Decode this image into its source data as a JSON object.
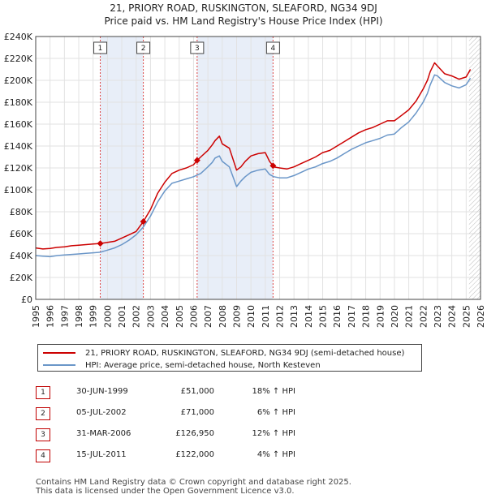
{
  "chart_data": {
    "type": "line",
    "title": "21, PRIORY ROAD, RUSKINGTON, SLEAFORD, NG34 9DJ",
    "subtitle": "Price paid vs. HM Land Registry's House Price Index (HPI)",
    "xlim": [
      1995,
      2026
    ],
    "ylim": [
      0,
      240000
    ],
    "x_ticks": [
      "1995",
      "1996",
      "1997",
      "1998",
      "1999",
      "2000",
      "2001",
      "2002",
      "2003",
      "2004",
      "2005",
      "2006",
      "2007",
      "2008",
      "2009",
      "2010",
      "2011",
      "2012",
      "2013",
      "2014",
      "2015",
      "2016",
      "2017",
      "2018",
      "2019",
      "2020",
      "2021",
      "2022",
      "2023",
      "2024",
      "2025",
      "2026"
    ],
    "y_ticks": [
      0,
      20000,
      40000,
      60000,
      80000,
      100000,
      120000,
      140000,
      160000,
      180000,
      200000,
      220000,
      240000
    ],
    "y_tick_labels": [
      "£0",
      "£20K",
      "£40K",
      "£60K",
      "£80K",
      "£100K",
      "£120K",
      "£140K",
      "£160K",
      "£180K",
      "£200K",
      "£220K",
      "£240K"
    ],
    "grid": true,
    "colors": {
      "price_paid": "#cc0000",
      "hpi": "#6a96c8",
      "sale_band": "#e8eef8",
      "sale_line": "#dd4444",
      "forecast_hatch": "#bbbbbb"
    },
    "forecast_start": 2025.2,
    "series": [
      {
        "name": "21, PRIORY ROAD, RUSKINGTON, SLEAFORD, NG34 9DJ (semi-detached house)",
        "color": "#cc0000",
        "x": [
          1995.0,
          1995.5,
          1996.0,
          1996.5,
          1997.0,
          1997.5,
          1998.0,
          1998.5,
          1999.0,
          1999.5,
          2000.0,
          2000.5,
          2001.0,
          2001.5,
          2002.0,
          2002.5,
          2003.0,
          2003.5,
          2004.0,
          2004.5,
          2005.0,
          2005.5,
          2006.0,
          2006.25,
          2006.5,
          2007.0,
          2007.3,
          2007.5,
          2007.8,
          2008.0,
          2008.5,
          2009.0,
          2009.3,
          2009.6,
          2010.0,
          2010.5,
          2011.0,
          2011.3,
          2011.6,
          2012.0,
          2012.5,
          2013.0,
          2013.5,
          2014.0,
          2014.5,
          2015.0,
          2015.5,
          2016.0,
          2016.5,
          2017.0,
          2017.5,
          2018.0,
          2018.5,
          2019.0,
          2019.5,
          2020.0,
          2020.5,
          2021.0,
          2021.5,
          2022.0,
          2022.3,
          2022.5,
          2022.8,
          2023.0,
          2023.5,
          2024.0,
          2024.5,
          2025.0,
          2025.3
        ],
        "values": [
          47000,
          46000,
          46500,
          47500,
          48000,
          49000,
          49500,
          50000,
          50500,
          51000,
          52000,
          53000,
          56000,
          59000,
          62000,
          71000,
          82000,
          97000,
          107000,
          115000,
          118000,
          120000,
          123000,
          126950,
          130000,
          136000,
          141000,
          145000,
          149000,
          142000,
          138000,
          118000,
          121000,
          126000,
          131000,
          133000,
          134000,
          126000,
          121000,
          120000,
          119000,
          121000,
          124000,
          127000,
          130000,
          134000,
          136000,
          140000,
          144000,
          148000,
          152000,
          155000,
          157000,
          160000,
          163000,
          163000,
          168000,
          173000,
          181000,
          192000,
          200000,
          208000,
          216000,
          213000,
          206000,
          204000,
          201000,
          203000,
          210000
        ]
      },
      {
        "name": "HPI: Average price, semi-detached house, North Kesteven",
        "color": "#6a96c8",
        "x": [
          1995.0,
          1995.5,
          1996.0,
          1996.5,
          1997.0,
          1997.5,
          1998.0,
          1998.5,
          1999.0,
          1999.5,
          2000.0,
          2000.5,
          2001.0,
          2001.5,
          2002.0,
          2002.5,
          2003.0,
          2003.5,
          2004.0,
          2004.5,
          2005.0,
          2005.5,
          2006.0,
          2006.5,
          2007.0,
          2007.3,
          2007.5,
          2007.8,
          2008.0,
          2008.5,
          2009.0,
          2009.3,
          2009.6,
          2010.0,
          2010.5,
          2011.0,
          2011.3,
          2011.6,
          2012.0,
          2012.5,
          2013.0,
          2013.5,
          2014.0,
          2014.5,
          2015.0,
          2015.5,
          2016.0,
          2016.5,
          2017.0,
          2017.5,
          2018.0,
          2018.5,
          2019.0,
          2019.5,
          2020.0,
          2020.5,
          2021.0,
          2021.5,
          2022.0,
          2022.3,
          2022.5,
          2022.8,
          2023.0,
          2023.5,
          2024.0,
          2024.5,
          2025.0,
          2025.3
        ],
        "values": [
          40000,
          39500,
          39000,
          40000,
          40500,
          41000,
          41500,
          42000,
          42500,
          43000,
          45000,
          47000,
          50000,
          54000,
          59000,
          66000,
          76000,
          89000,
          99000,
          106000,
          108000,
          110000,
          112000,
          115000,
          121000,
          125000,
          129000,
          131000,
          126000,
          121000,
          103000,
          108000,
          112000,
          116000,
          118000,
          119000,
          114000,
          112000,
          111000,
          111000,
          113000,
          116000,
          119000,
          121000,
          124000,
          126000,
          129000,
          133000,
          137000,
          140000,
          143000,
          145000,
          147000,
          150000,
          151000,
          157000,
          162000,
          170000,
          180000,
          188000,
          196000,
          205000,
          204000,
          198000,
          195000,
          193000,
          196000,
          202000
        ]
      }
    ],
    "sales": [
      {
        "label": "1",
        "x": 1999.5,
        "value": 51000
      },
      {
        "label": "2",
        "x": 2002.5,
        "value": 71000
      },
      {
        "label": "3",
        "x": 2006.25,
        "value": 126950
      },
      {
        "label": "4",
        "x": 2011.54,
        "value": 122000
      }
    ]
  },
  "legend": {
    "price_paid": "21, PRIORY ROAD, RUSKINGTON, SLEAFORD, NG34 9DJ (semi-detached house)",
    "hpi": "HPI: Average price, semi-detached house, North Kesteven"
  },
  "transactions": [
    {
      "num": "1",
      "date": "30-JUN-1999",
      "price": "£51,000",
      "delta": "18% ↑ HPI"
    },
    {
      "num": "2",
      "date": "05-JUL-2002",
      "price": "£71,000",
      "delta": "6% ↑ HPI"
    },
    {
      "num": "3",
      "date": "31-MAR-2006",
      "price": "£126,950",
      "delta": "12% ↑ HPI"
    },
    {
      "num": "4",
      "date": "15-JUL-2011",
      "price": "£122,000",
      "delta": "4% ↑ HPI"
    }
  ],
  "footer": {
    "line1": "Contains HM Land Registry data © Crown copyright and database right 2025.",
    "line2": "This data is licensed under the Open Government Licence v3.0."
  }
}
